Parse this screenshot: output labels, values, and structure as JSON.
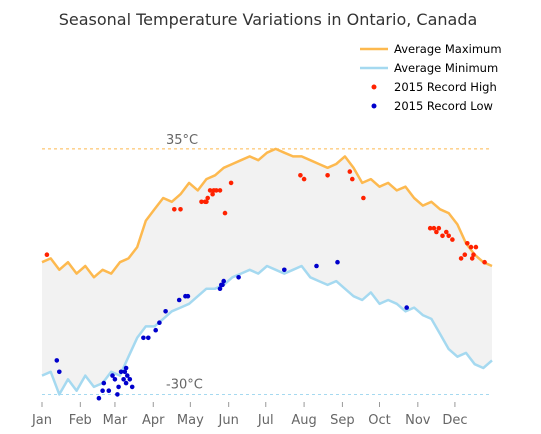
{
  "chart_data": {
    "type": "line",
    "title": "Seasonal Temperature Variations in Ontario, Canada",
    "xlabel": "",
    "ylabel": "",
    "x_ticks": [
      "Jan",
      "Feb",
      "Mar",
      "Apr",
      "May",
      "Jun",
      "Jul",
      "Aug",
      "Sep",
      "Oct",
      "Nov",
      "Dec"
    ],
    "x_tick_days": [
      1,
      32,
      60,
      91,
      121,
      152,
      182,
      213,
      244,
      274,
      305,
      335
    ],
    "x_range": [
      1,
      365
    ],
    "ylim": [
      -32,
      40
    ],
    "reference_lines": [
      {
        "value": 35,
        "label": "35",
        "unit": "°C",
        "color": "#FDB94F"
      },
      {
        "value": -30,
        "label": "-30",
        "unit": "°C",
        "color": "#A5D9F0"
      }
    ],
    "series": [
      {
        "name": "Average Maximum",
        "color": "#FDB94F",
        "x": [
          1,
          8,
          15,
          22,
          29,
          36,
          43,
          50,
          57,
          64,
          71,
          78,
          85,
          92,
          99,
          106,
          113,
          120,
          127,
          134,
          141,
          148,
          155,
          162,
          169,
          176,
          183,
          190,
          197,
          204,
          211,
          218,
          225,
          232,
          239,
          246,
          253,
          260,
          267,
          274,
          281,
          288,
          295,
          302,
          309,
          316,
          323,
          330,
          337,
          344,
          351,
          358,
          365
        ],
        "y": [
          5,
          6,
          3,
          5,
          2,
          4,
          1,
          3,
          2,
          5,
          6,
          9,
          16,
          19,
          22,
          21,
          23,
          26,
          24,
          27,
          28,
          30,
          31,
          32,
          33,
          32,
          34,
          35,
          34,
          33,
          33,
          32,
          31,
          30,
          31,
          33,
          30,
          26,
          27,
          25,
          26,
          24,
          25,
          22,
          20,
          21,
          19,
          18,
          15,
          10,
          7,
          5,
          4
        ]
      },
      {
        "name": "Average Minimum",
        "color": "#A5D9F0",
        "x": [
          1,
          8,
          15,
          22,
          29,
          36,
          43,
          50,
          57,
          64,
          71,
          78,
          85,
          92,
          99,
          106,
          113,
          120,
          127,
          134,
          141,
          148,
          155,
          162,
          169,
          176,
          183,
          190,
          197,
          204,
          211,
          218,
          225,
          232,
          239,
          246,
          253,
          260,
          267,
          274,
          281,
          288,
          295,
          302,
          309,
          316,
          323,
          330,
          337,
          344,
          351,
          358,
          365
        ],
        "y": [
          -25,
          -24,
          -30,
          -26,
          -29,
          -25,
          -28,
          -27,
          -24,
          -25,
          -20,
          -15,
          -12,
          -12,
          -10,
          -8,
          -7,
          -6,
          -4,
          -2,
          -2,
          -1,
          1,
          2,
          3,
          2,
          4,
          3,
          2,
          3,
          4,
          1,
          0,
          -1,
          0,
          -2,
          -4,
          -5,
          -3,
          -6,
          -5,
          -6,
          -8,
          -7,
          -9,
          -10,
          -14,
          -18,
          -20,
          -19,
          -22,
          -23,
          -21
        ]
      }
    ],
    "scatter_series": [
      {
        "name": "2015 Record High",
        "color": "#FF2200",
        "x": [
          5,
          108,
          113,
          130,
          133,
          134,
          135,
          137,
          139,
          140,
          142,
          145,
          149,
          154,
          210,
          213,
          232,
          250,
          252,
          261,
          315,
          318,
          320,
          322,
          325,
          328,
          330,
          333,
          340,
          343,
          345,
          348,
          349,
          350,
          352,
          359
        ],
        "y": [
          7,
          19,
          19,
          21,
          21,
          21,
          22,
          24,
          23,
          24,
          24,
          24,
          18,
          26,
          28,
          27,
          28,
          29,
          27,
          22,
          14,
          14,
          13,
          14,
          12,
          13,
          12,
          11,
          6,
          7,
          10,
          9,
          6,
          7,
          9,
          5
        ]
      },
      {
        "name": "2015 Record Low",
        "color": "#0000CC",
        "x": [
          13,
          15,
          47,
          50,
          51,
          55,
          58,
          60,
          62,
          63,
          65,
          67,
          68,
          69,
          69,
          70,
          72,
          74,
          83,
          87,
          93,
          96,
          101,
          112,
          117,
          119,
          145,
          146,
          147,
          148,
          160,
          197,
          223,
          240,
          296
        ],
        "y": [
          -21,
          -24,
          -31,
          -29,
          -27,
          -29,
          -25,
          -26,
          -30,
          -28,
          -24,
          -26,
          -24,
          -23,
          -27,
          -25,
          -26,
          -28,
          -15,
          -15,
          -13,
          -11,
          -8,
          -5,
          -4,
          -4,
          -2,
          -1,
          -1,
          0,
          1,
          3,
          4,
          5,
          -7
        ]
      }
    ],
    "legend": {
      "position": "top-right",
      "entries": [
        "Average Maximum",
        "Average Minimum",
        "2015 Record High",
        "2015 Record Low"
      ]
    },
    "fill_between": {
      "color": "#F2F2F2"
    },
    "grid": false
  }
}
